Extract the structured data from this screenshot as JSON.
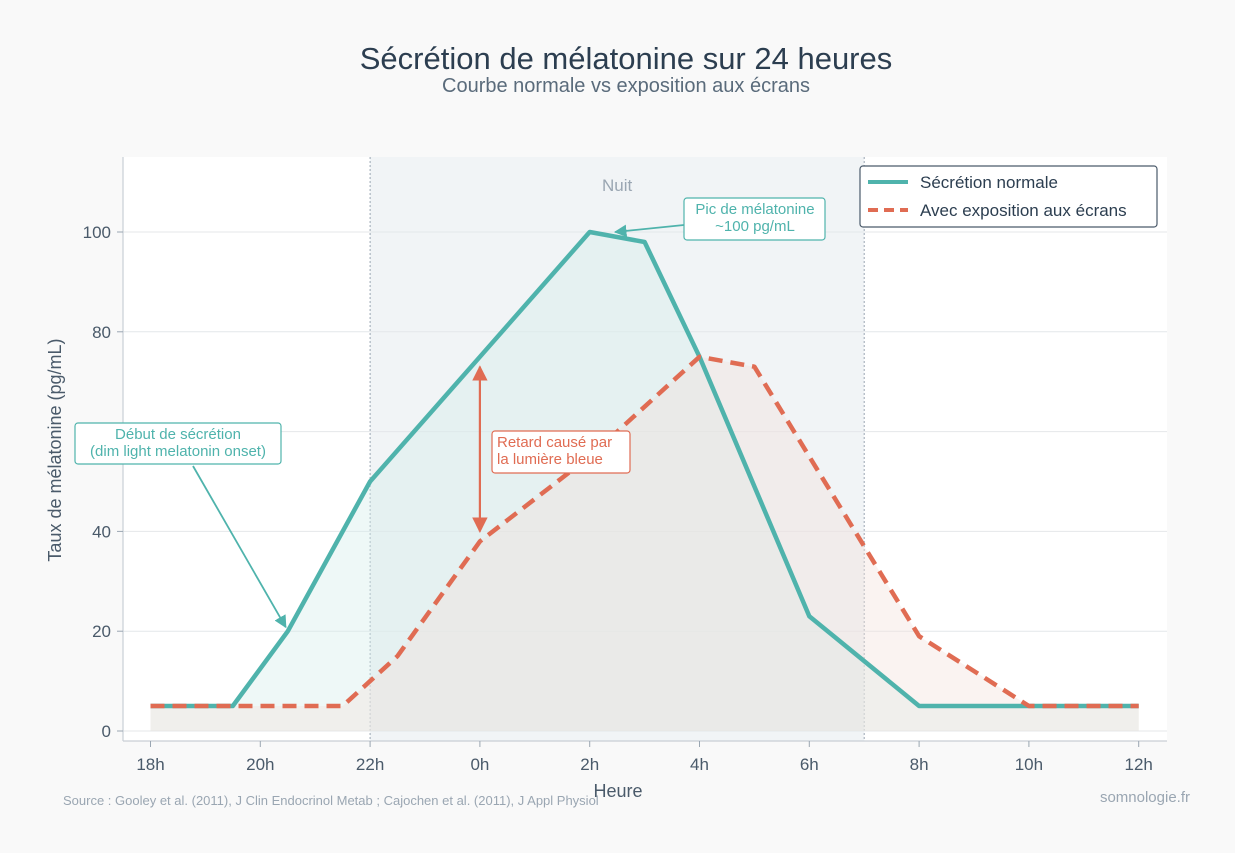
{
  "chart_data": {
    "type": "line",
    "title": "Sécrétion de mélatonine sur 24 heures",
    "subtitle": "Courbe normale vs exposition aux écrans",
    "xlabel": "Heure",
    "ylabel": "Taux de mélatonine (pg/mL)",
    "x_ticks": [
      "18h",
      "20h",
      "22h",
      "0h",
      "2h",
      "4h",
      "6h",
      "8h",
      "10h",
      "12h"
    ],
    "y_ticks": [
      0,
      20,
      40,
      60,
      80,
      100
    ],
    "xlim_hours_after_18h": [
      -0.5,
      18.5
    ],
    "ylim": [
      -2,
      115
    ],
    "grid": true,
    "legend_position": "top-right",
    "night_band": {
      "label": "Nuit",
      "start": "22h",
      "end": "7h"
    },
    "series": [
      {
        "name": "Sécrétion normale",
        "color": "#4fb3ac",
        "style": "solid",
        "points": [
          {
            "t": "18h",
            "v": 5
          },
          {
            "t": "19h30",
            "v": 5
          },
          {
            "t": "20h30",
            "v": 20
          },
          {
            "t": "22h",
            "v": 50
          },
          {
            "t": "0h",
            "v": 75
          },
          {
            "t": "2h",
            "v": 100
          },
          {
            "t": "3h",
            "v": 98
          },
          {
            "t": "4h",
            "v": 75
          },
          {
            "t": "6h",
            "v": 23
          },
          {
            "t": "8h",
            "v": 5
          },
          {
            "t": "10h",
            "v": 5
          },
          {
            "t": "12h",
            "v": 5
          }
        ]
      },
      {
        "name": "Avec exposition aux écrans",
        "color": "#e06c53",
        "style": "dashed",
        "points": [
          {
            "t": "18h",
            "v": 5
          },
          {
            "t": "22h30",
            "v": 5
          },
          {
            "t": "22h",
            "v": 10
          },
          {
            "t": "22h30",
            "v": 15
          },
          {
            "t": "0h",
            "v": 38
          },
          {
            "t": "2h",
            "v": 55
          },
          {
            "t": "4h",
            "v": 75
          },
          {
            "t": "5h",
            "v": 73
          },
          {
            "t": "7h",
            "v": 37
          },
          {
            "t": "8h",
            "v": 19
          },
          {
            "t": "10h",
            "v": 5
          },
          {
            "t": "12h",
            "v": 5
          }
        ]
      }
    ],
    "annotations": [
      {
        "id": "onset",
        "lines": [
          "Début de sécrétion",
          "(dim light melatonin onset)"
        ],
        "target": {
          "t": "20h30",
          "v": 20
        }
      },
      {
        "id": "peak",
        "lines": [
          "Pic de mélatonine",
          "~100 pg/mL"
        ],
        "target": {
          "t": "2h30",
          "v": 100
        }
      },
      {
        "id": "delay",
        "lines": [
          "Retard causé par",
          "la lumière bleue"
        ],
        "arrow": {
          "t": "0h",
          "from": 73,
          "to": 40
        }
      }
    ]
  },
  "footer": {
    "source": "Source : Gooley et al. (2011), J Clin Endocrinol Metab ; Cajochen et al. (2011), J Appl Physiol",
    "brand": "somnologie.fr"
  }
}
